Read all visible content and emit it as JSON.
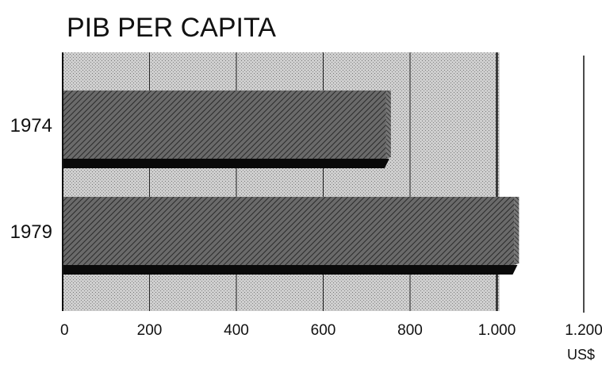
{
  "chart_data": {
    "type": "bar",
    "orientation": "horizontal",
    "title": "PIB PER CAPITA",
    "categories": [
      "1974",
      "1979"
    ],
    "values": [
      745,
      1040
    ],
    "x_ticks": [
      "0",
      "200",
      "400",
      "600",
      "800",
      "1.000",
      "1.200"
    ],
    "xlim": [
      0,
      1200
    ],
    "unit": "US$",
    "grid": true
  },
  "colors": {
    "plot_background": "#c6c6c6",
    "bar_fill": "#5a5a5a",
    "bar_shadow": "#0a0a0a",
    "axis": "#111111",
    "grid": "#222222"
  }
}
